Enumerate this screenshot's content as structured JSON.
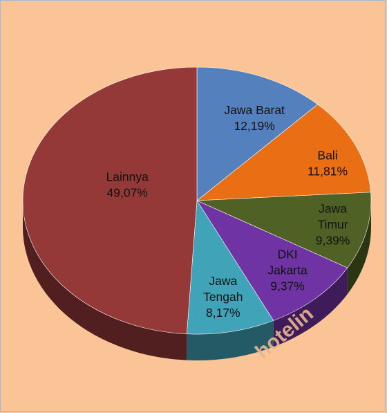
{
  "chart_data": {
    "type": "pie",
    "title": "",
    "slices": [
      {
        "label": "Jawa Barat",
        "value": 12.19,
        "display": "12,19%",
        "color": "#5580be",
        "label_lines": [
          "Jawa Barat",
          "12,19%"
        ]
      },
      {
        "label": "Bali",
        "value": 11.81,
        "display": "11,81%",
        "color": "#e96e14",
        "label_lines": [
          "Bali",
          "11,81%"
        ]
      },
      {
        "label": "Jawa Timur",
        "value": 9.39,
        "display": "9,39%",
        "color": "#4f6124",
        "label_lines": [
          "Jawa",
          "Timur",
          "9,39%"
        ]
      },
      {
        "label": "DKI Jakarta",
        "value": 9.37,
        "display": "9,37%",
        "color": "#7033a4",
        "label_lines": [
          "DKI",
          "Jakarta",
          "9,37%"
        ]
      },
      {
        "label": "Jawa Tengah",
        "value": 8.17,
        "display": "8,17%",
        "color": "#41a3b8",
        "label_lines": [
          "Jawa",
          "Tengah",
          "8,17%"
        ]
      },
      {
        "label": "Lainnya",
        "value": 49.07,
        "display": "49,07%",
        "color": "#943838",
        "label_lines": [
          "Lainnya",
          "49,07%"
        ]
      }
    ],
    "legend": "none",
    "style": "3d-pie"
  },
  "watermark": {
    "text": "hotelin"
  }
}
